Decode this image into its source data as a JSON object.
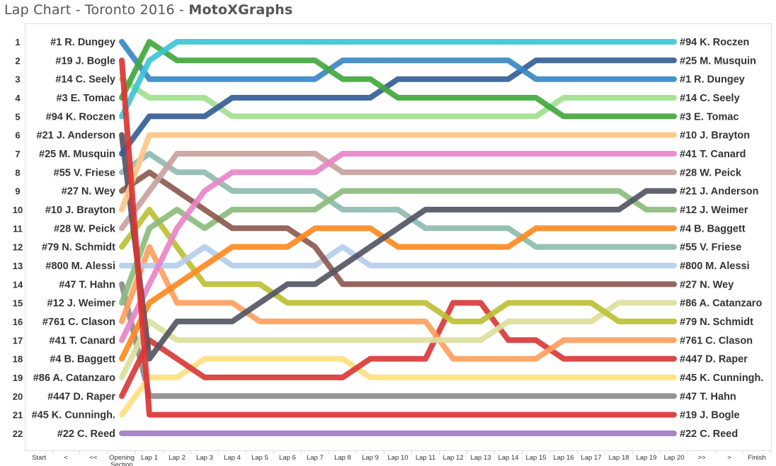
{
  "title": "Lap Chart - Toronto 2016 - ",
  "brand": "MotoXGraphs",
  "chart_data": {
    "type": "line",
    "title": "Lap Chart - Toronto 2016 - MotoXGraphs",
    "y_reversed": true,
    "ylim": [
      1,
      22
    ],
    "positions": [
      1,
      2,
      3,
      4,
      5,
      6,
      7,
      8,
      9,
      10,
      11,
      12,
      13,
      14,
      15,
      16,
      17,
      18,
      19,
      20,
      21,
      22
    ],
    "x_labels_all": [
      "Start",
      "<",
      "<<",
      "Opening Section",
      "Lap 1",
      "Lap 2",
      "Lap 3",
      "Lap 4",
      "Lap 5",
      "Lap 6",
      "Lap 7",
      "Lap 8",
      "Lap 9",
      "Lap 10",
      "Lap 11",
      "Lap 12",
      "Lap 13",
      "Lap 14",
      "Lap 15",
      "Lap 16",
      "Lap 17",
      "Lap 18",
      "Lap 19",
      "Lap 20",
      ">>",
      ">",
      "Finish"
    ],
    "x": [
      "Opening Section",
      "Lap 1",
      "Lap 2",
      "Lap 3",
      "Lap 4",
      "Lap 5",
      "Lap 6",
      "Lap 7",
      "Lap 8",
      "Lap 9",
      "Lap 10",
      "Lap 11",
      "Lap 12",
      "Lap 13",
      "Lap 14",
      "Lap 15",
      "Lap 16",
      "Lap 17",
      "Lap 18",
      "Lap 19",
      "Lap 20"
    ],
    "series": [
      {
        "name": "#22 C. Reed",
        "color": "#9c7cc4",
        "values": [
          22,
          22,
          22,
          22,
          22,
          22,
          22,
          22,
          22,
          22,
          22,
          22,
          22,
          22,
          22,
          22,
          22,
          22,
          22,
          22,
          22
        ]
      },
      {
        "name": "#47 T. Hahn",
        "color": "#8c8c8c",
        "values": [
          14,
          20,
          20,
          20,
          20,
          20,
          20,
          20,
          20,
          20,
          20,
          20,
          20,
          20,
          20,
          20,
          20,
          20,
          20,
          20,
          20
        ]
      },
      {
        "name": "#45 K. Cunningh.",
        "color": "#ffdf80",
        "values": [
          21,
          19,
          19,
          18,
          18,
          18,
          18,
          18,
          18,
          19,
          19,
          19,
          19,
          19,
          19,
          19,
          19,
          19,
          19,
          19,
          19
        ]
      },
      {
        "name": "#447 D. Raper",
        "color": "#d93a3a",
        "values": [
          20,
          17,
          18,
          19,
          19,
          19,
          19,
          19,
          19,
          18,
          18,
          18,
          15,
          15,
          17,
          17,
          18,
          18,
          18,
          18,
          18
        ]
      },
      {
        "name": "#761 C. Clason",
        "color": "#ff9f5e",
        "values": [
          16,
          12,
          15,
          15,
          15,
          16,
          16,
          16,
          16,
          16,
          16,
          16,
          18,
          18,
          18,
          18,
          17,
          17,
          17,
          17,
          17
        ]
      },
      {
        "name": "#86 A. Catanzaro",
        "color": "#dcdf9c",
        "values": [
          19,
          16,
          17,
          17,
          17,
          17,
          17,
          17,
          17,
          17,
          17,
          17,
          17,
          17,
          16,
          16,
          16,
          16,
          15,
          15,
          15
        ]
      },
      {
        "name": "#79 N. Schmidt",
        "color": "#bcc034",
        "values": [
          12,
          10,
          12,
          14,
          14,
          14,
          15,
          15,
          15,
          15,
          15,
          15,
          16,
          16,
          15,
          15,
          15,
          15,
          16,
          16,
          16
        ]
      },
      {
        "name": "#800 M. Alessi",
        "color": "#b6cdec",
        "values": [
          13,
          13,
          13,
          12,
          13,
          13,
          13,
          13,
          12,
          13,
          13,
          13,
          13,
          13,
          13,
          13,
          13,
          13,
          13,
          13,
          13
        ]
      },
      {
        "name": "#55 V. Friese",
        "color": "#8fbcb0",
        "values": [
          8,
          7,
          8,
          8,
          9,
          9,
          9,
          9,
          10,
          10,
          10,
          11,
          11,
          11,
          11,
          12,
          12,
          12,
          12,
          12,
          12
        ]
      },
      {
        "name": "#12 J. Weimer",
        "color": "#8cbc7e",
        "values": [
          15,
          11,
          10,
          11,
          10,
          10,
          10,
          10,
          9,
          9,
          9,
          9,
          9,
          9,
          9,
          9,
          9,
          9,
          9,
          10,
          10
        ]
      },
      {
        "name": "#27 N. Wey",
        "color": "#8c5a50",
        "values": [
          9,
          8,
          9,
          10,
          11,
          11,
          11,
          12,
          14,
          14,
          14,
          14,
          14,
          14,
          14,
          14,
          14,
          14,
          14,
          14,
          14
        ]
      },
      {
        "name": "#28 W. Peick",
        "color": "#c8a29c",
        "values": [
          11,
          9,
          7,
          7,
          7,
          7,
          7,
          7,
          8,
          8,
          8,
          8,
          8,
          8,
          8,
          8,
          8,
          8,
          8,
          8,
          8
        ]
      },
      {
        "name": "#41 T. Canard",
        "color": "#e885c8",
        "values": [
          17,
          14,
          11,
          9,
          8,
          8,
          8,
          8,
          7,
          7,
          7,
          7,
          7,
          7,
          7,
          7,
          7,
          7,
          7,
          7,
          7
        ]
      },
      {
        "name": "#4 B. Baggett",
        "color": "#ff8a22",
        "values": [
          18,
          15,
          14,
          13,
          12,
          12,
          12,
          11,
          11,
          11,
          12,
          12,
          12,
          12,
          12,
          11,
          11,
          11,
          11,
          11,
          11
        ]
      },
      {
        "name": "#21 J. Anderson",
        "color": "#545662",
        "values": [
          6,
          18,
          16,
          16,
          16,
          15,
          14,
          14,
          13,
          12,
          11,
          10,
          10,
          10,
          10,
          10,
          10,
          10,
          10,
          9,
          9
        ]
      },
      {
        "name": "#10 J. Brayton",
        "color": "#ffc585",
        "values": [
          10,
          6,
          6,
          6,
          6,
          6,
          6,
          6,
          6,
          6,
          6,
          6,
          6,
          6,
          6,
          6,
          6,
          6,
          6,
          6,
          6
        ]
      },
      {
        "name": "#14 C. Seely",
        "color": "#9fe08f",
        "values": [
          3,
          4,
          4,
          4,
          5,
          5,
          5,
          5,
          5,
          5,
          5,
          5,
          5,
          5,
          5,
          5,
          4,
          4,
          4,
          4,
          4
        ]
      },
      {
        "name": "#25 M. Musquin",
        "color": "#355e96",
        "values": [
          7,
          5,
          5,
          5,
          4,
          4,
          4,
          4,
          4,
          4,
          3,
          3,
          3,
          3,
          3,
          2,
          2,
          2,
          2,
          2,
          2
        ]
      },
      {
        "name": "#1 R. Dungey",
        "color": "#3a88c4",
        "values": [
          1,
          3,
          3,
          3,
          3,
          3,
          3,
          3,
          2,
          2,
          2,
          2,
          2,
          2,
          2,
          3,
          3,
          3,
          3,
          3,
          3
        ]
      },
      {
        "name": "#3 E. Tomac",
        "color": "#42a83c",
        "values": [
          4,
          1,
          2,
          2,
          2,
          2,
          2,
          2,
          3,
          3,
          4,
          4,
          4,
          4,
          4,
          4,
          5,
          5,
          5,
          5,
          5
        ]
      },
      {
        "name": "#94 K. Roczen",
        "color": "#3cc6d4",
        "values": [
          5,
          2,
          1,
          1,
          1,
          1,
          1,
          1,
          1,
          1,
          1,
          1,
          1,
          1,
          1,
          1,
          1,
          1,
          1,
          1,
          1
        ]
      },
      {
        "name": "#19 J. Bogle",
        "color": "#dc3434",
        "values": [
          2,
          21,
          21,
          21,
          21,
          21,
          21,
          21,
          21,
          21,
          21,
          21,
          21,
          21,
          21,
          21,
          21,
          21,
          21,
          21,
          21
        ]
      }
    ]
  }
}
